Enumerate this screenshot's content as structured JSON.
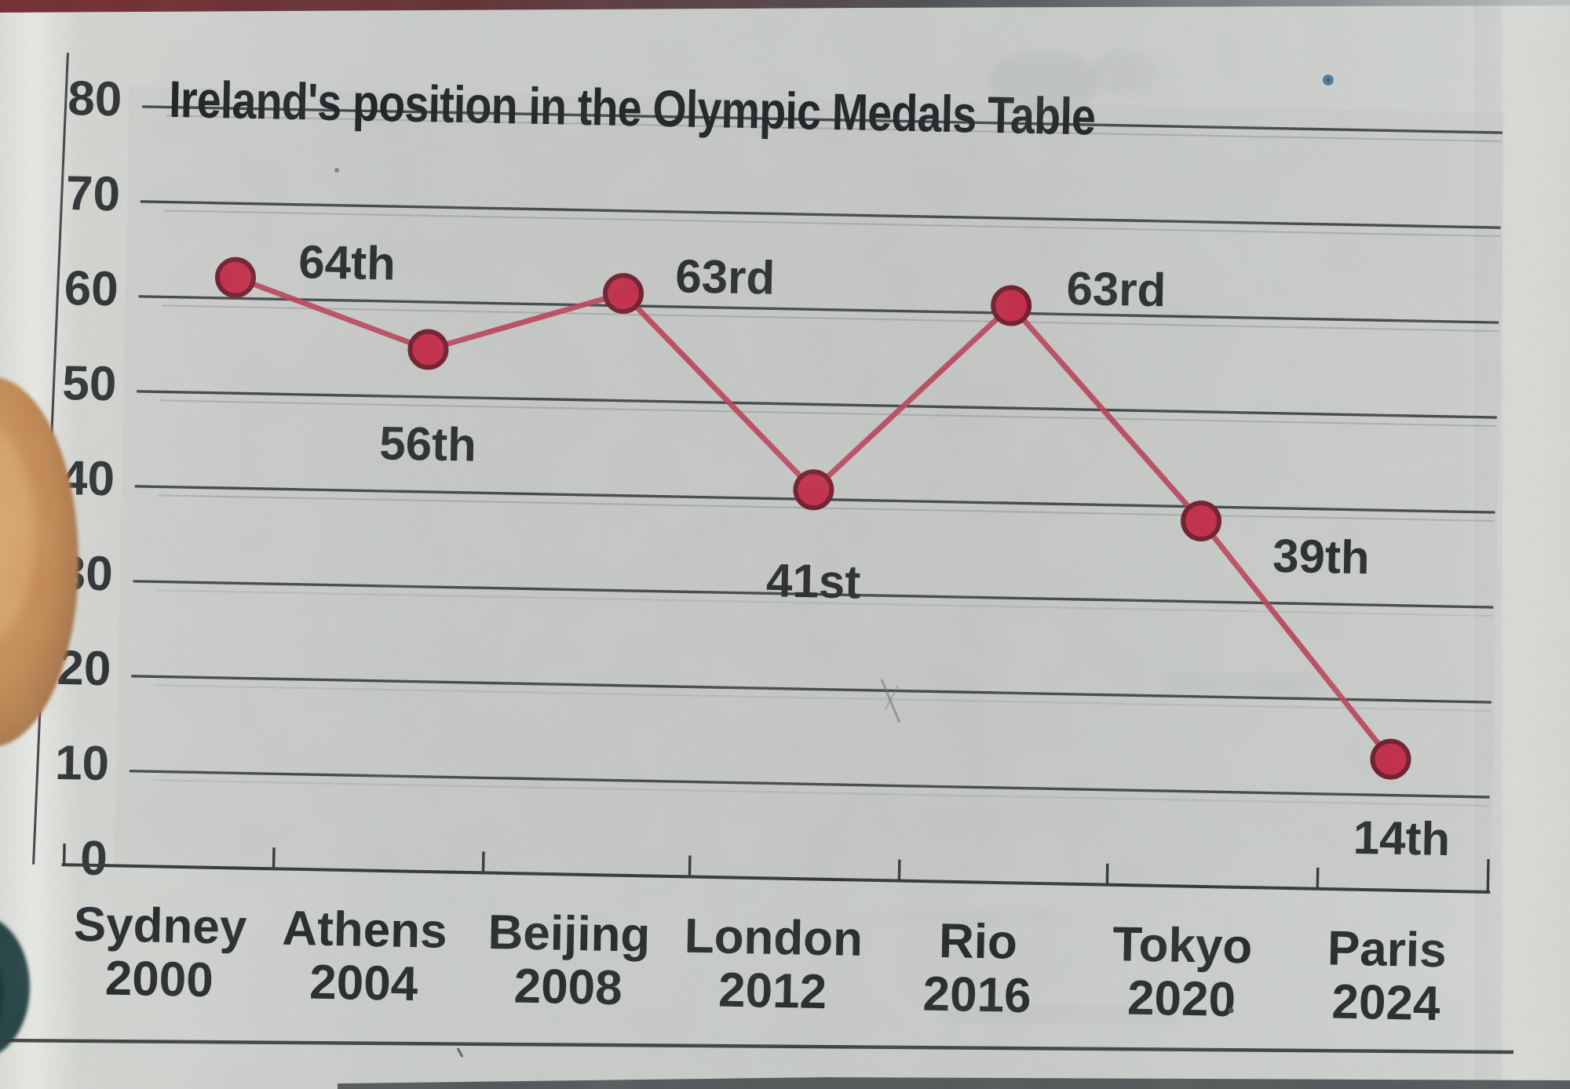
{
  "chart_data": {
    "type": "line",
    "title": "Ireland's position in the Olympic Medals Table",
    "categories": [
      "Sydney 2000",
      "Athens 2004",
      "Beijing 2008",
      "London 2012",
      "Rio 2016",
      "Tokyo 2020",
      "Paris 2024"
    ],
    "categories_lines": [
      {
        "city": "Sydney",
        "year": "2000"
      },
      {
        "city": "Athens",
        "year": "2004"
      },
      {
        "city": "Beijing",
        "year": "2008"
      },
      {
        "city": "London",
        "year": "2012"
      },
      {
        "city": "Rio",
        "year": "2016"
      },
      {
        "city": "Tokyo",
        "year": "2020"
      },
      {
        "city": "Paris",
        "year": "2024"
      }
    ],
    "values": [
      64,
      56,
      63,
      41,
      63,
      39,
      14
    ],
    "point_labels": [
      "64th",
      "56th",
      "63rd",
      "41st",
      "63rd",
      "39th",
      "14th"
    ],
    "y_ticks": [
      80,
      70,
      60,
      50,
      40,
      30,
      20,
      10,
      0
    ],
    "ylim": [
      0,
      80
    ],
    "xlabel": "",
    "ylabel": "",
    "grid": true,
    "legend": "none",
    "colors": {
      "line": "#b93e55",
      "dot_fill": "#c22745",
      "dot_stroke": "#6d1828",
      "grid": "#404447",
      "text": "#26292c",
      "title": "#1b1e21",
      "axis": "#2e3235"
    }
  },
  "photo_artifacts": {
    "paper_color": "#c9ccc9",
    "top_edge_strip_color": "#5f2a2d",
    "left_photo_fragment_color": "#c08650",
    "bottom_left_fragment_color": "#1e3a3e",
    "ink_dot_color": "#4d7a99",
    "bottom_rule_color": "#2b2f31"
  }
}
